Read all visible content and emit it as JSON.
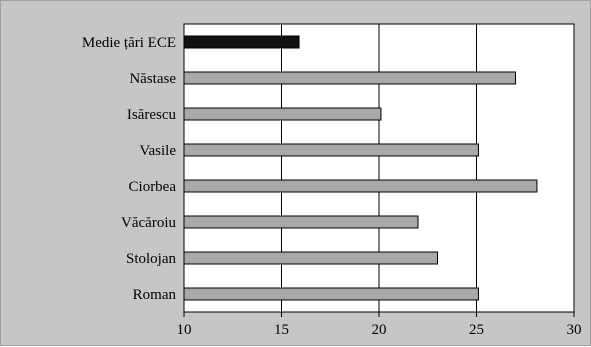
{
  "chart_data": {
    "type": "bar",
    "orientation": "horizontal",
    "categories": [
      "Medie țări ECE",
      "Năstase",
      "Isărescu",
      "Vasile",
      "Ciorbea",
      "Văcăroiu",
      "Stolojan",
      "Roman"
    ],
    "values": [
      15.9,
      27.0,
      20.1,
      25.1,
      28.1,
      22.0,
      23.0,
      25.1
    ],
    "highlight_index": 0,
    "title": "",
    "xlabel": "",
    "ylabel": "",
    "xlim": [
      10,
      30
    ],
    "xticks": [
      10,
      15,
      20,
      25,
      30
    ],
    "grid": "vertical",
    "legend": "none",
    "colors": {
      "bar": "#a9a9a9",
      "highlight": "#111111",
      "plot_background": "#ffffff",
      "frame_background": "#c6c6c6",
      "gridline": "#000000"
    }
  }
}
